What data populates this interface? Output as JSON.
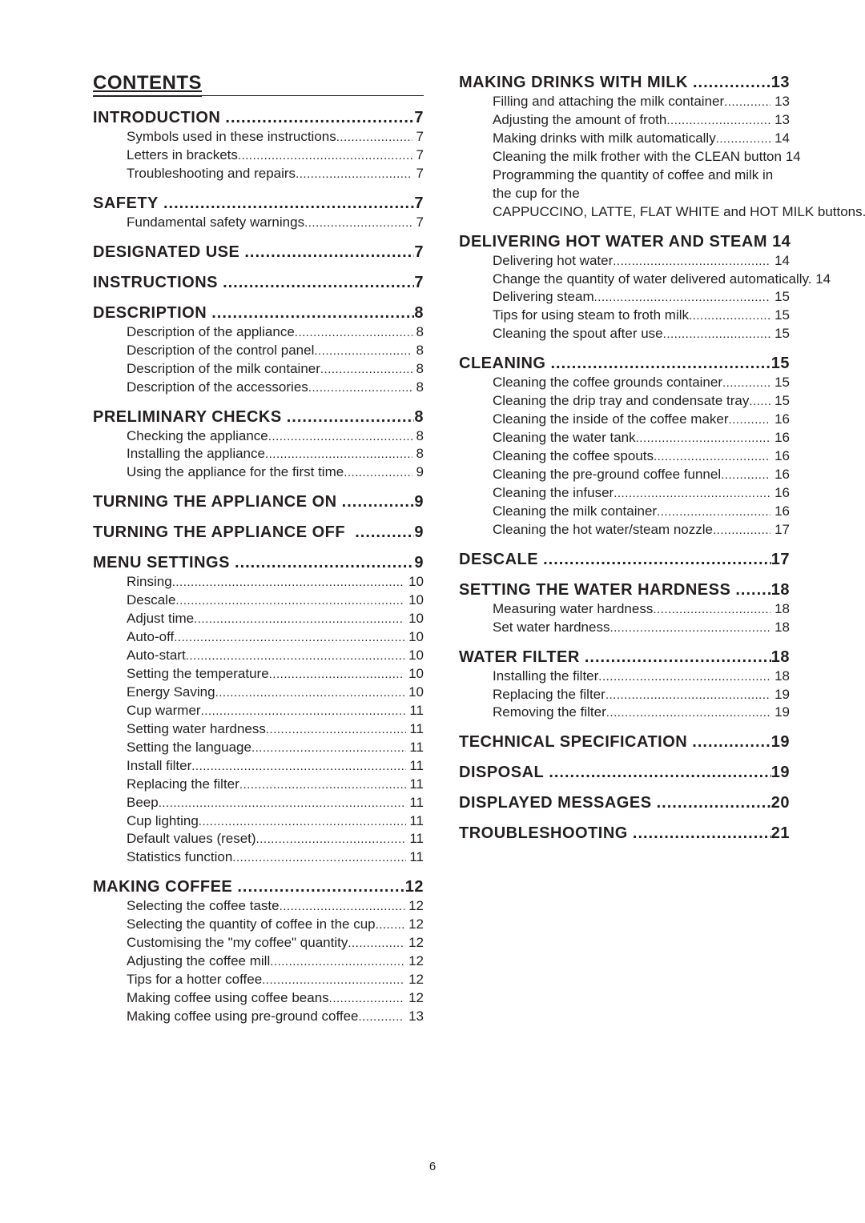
{
  "contents_title": "CONTENTS",
  "page_number": "6",
  "dots": "................................................................................................................................................",
  "left": [
    {
      "type": "head",
      "label": "INTRODUCTION",
      "page": "7",
      "subs": [
        {
          "label": "Symbols used in these instructions",
          "page": "7"
        },
        {
          "label": "Letters in brackets",
          "page": "7"
        },
        {
          "label": "Troubleshooting and repairs",
          "page": "7"
        }
      ]
    },
    {
      "type": "head",
      "label": "SAFETY",
      "page": "7",
      "subs": [
        {
          "label": "Fundamental safety warnings",
          "page": "7"
        }
      ]
    },
    {
      "type": "head",
      "label": "DESIGNATED USE",
      "page": "7",
      "subs": []
    },
    {
      "type": "head",
      "label": "INSTRUCTIONS",
      "page": "7",
      "subs": []
    },
    {
      "type": "head",
      "label": "DESCRIPTION",
      "page": "8",
      "subs": [
        {
          "label": "Description of the appliance",
          "page": "8"
        },
        {
          "label": "Description of the control panel",
          "page": "8"
        },
        {
          "label": "Description of the milk container",
          "page": "8"
        },
        {
          "label": "Description of the accessories",
          "page": "8"
        }
      ]
    },
    {
      "type": "head",
      "label": "PRELIMINARY CHECKS",
      "page": "8",
      "subs": [
        {
          "label": "Checking the appliance",
          "page": "8"
        },
        {
          "label": "Installing the appliance",
          "page": "8"
        },
        {
          "label": "Using the appliance for the first time",
          "page": "9"
        }
      ]
    },
    {
      "type": "head",
      "label": "TURNING THE APPLIANCE ON",
      "page": "9",
      "subs": []
    },
    {
      "type": "head",
      "label": "TURNING THE APPLIANCE OFF  ",
      "page": "9",
      "subs": []
    },
    {
      "type": "head",
      "label": "MENU SETTINGS",
      "page": "9",
      "subs": [
        {
          "label": "Rinsing",
          "page": "10"
        },
        {
          "label": "Descale",
          "page": "10"
        },
        {
          "label": "Adjust time",
          "page": "10"
        },
        {
          "label": "Auto-off",
          "page": "10"
        },
        {
          "label": "Auto-start",
          "page": "10"
        },
        {
          "label": "Setting the temperature",
          "page": "10"
        },
        {
          "label": "Energy Saving",
          "page": "10"
        },
        {
          "label": "Cup warmer",
          "page": "11"
        },
        {
          "label": "Setting water hardness",
          "page": "11"
        },
        {
          "label": "Setting the language ",
          "page": "11"
        },
        {
          "label": "Install filter",
          "page": "11"
        },
        {
          "label": "Replacing the filter",
          "page": "11"
        },
        {
          "label": "Beep",
          "page": "11"
        },
        {
          "label": "Cup lighting",
          "page": "11"
        },
        {
          "label": "Default values (reset)",
          "page": "11"
        },
        {
          "label": "Statistics function",
          "page": "11"
        }
      ]
    },
    {
      "type": "head",
      "label": "MAKING COFFEE",
      "page": "12",
      "subs": [
        {
          "label": "Selecting the coffee taste",
          "page": "12"
        },
        {
          "label": "Selecting the quantity of coffee in the cup",
          "page": "12"
        },
        {
          "label": "Customising the \"my coffee\" quantity",
          "page": "12"
        },
        {
          "label": "Adjusting the coffee mill",
          "page": "12"
        },
        {
          "label": "Tips for a hotter coffee",
          "page": "12"
        },
        {
          "label": "Making coffee using coffee beans",
          "page": "12"
        },
        {
          "label": "Making coffee using pre-ground coffee",
          "page": "13"
        }
      ]
    }
  ],
  "right": [
    {
      "type": "head",
      "label": "MAKING DRINKS WITH MILK",
      "page": "13",
      "subs": [
        {
          "label": "Filling and attaching the milk container",
          "page": "13"
        },
        {
          "label": "Adjusting the amount of froth",
          "page": "13"
        },
        {
          "label": "Making drinks with milk automatically",
          "page": "14"
        },
        {
          "label": "Cleaning the milk frother with the CLEAN button ",
          "page": "14"
        },
        {
          "label": "Programming the quantity of coffee and milk in the cup for the",
          "wrap": true,
          "cont": "CAPPUCCINO,  LATTE, FLAT WHITE and  HOT MILK buttons.",
          "page": "14"
        }
      ]
    },
    {
      "type": "head",
      "label": "DELIVERING HOT WATER AND STEAM",
      "page": "14",
      "subs": [
        {
          "label": "Delivering hot water ",
          "page": "14"
        },
        {
          "label": "Change the quantity of water delivered automatically. ",
          "page": "14"
        },
        {
          "label": "Delivering steam",
          "page": "15"
        },
        {
          "label": "Tips for using steam to froth milk",
          "page": "15"
        },
        {
          "label": "Cleaning the spout after use",
          "page": "15"
        }
      ]
    },
    {
      "type": "head",
      "label": "CLEANING",
      "page": "15",
      "subs": [
        {
          "label": "Cleaning the coffee grounds container",
          "page": "15"
        },
        {
          "label": "Cleaning the drip tray and condensate tray",
          "page": "15"
        },
        {
          "label": "Cleaning the inside of the coffee maker",
          "page": "16"
        },
        {
          "label": "Cleaning the water tank",
          "page": "16"
        },
        {
          "label": "Cleaning the coffee spouts",
          "page": "16"
        },
        {
          "label": "Cleaning the pre-ground coffee funnel",
          "page": "16"
        },
        {
          "label": "Cleaning the infuser",
          "page": "16"
        },
        {
          "label": "Cleaning the milk container",
          "page": "16"
        },
        {
          "label": "Cleaning the hot water/steam nozzle",
          "page": "17"
        }
      ]
    },
    {
      "type": "head",
      "label": "DESCALE",
      "page": "17",
      "subs": []
    },
    {
      "type": "head",
      "label": "SETTING THE WATER HARDNESS",
      "page": "18",
      "subs": [
        {
          "label": "Measuring water hardness",
          "page": "18"
        },
        {
          "label": "Set water hardness",
          "page": "18"
        }
      ]
    },
    {
      "type": "head",
      "label": "WATER FILTER",
      "page": "18",
      "subs": [
        {
          "label": "Installing the filter",
          "page": "18"
        },
        {
          "label": "Replacing the filter",
          "page": "19"
        },
        {
          "label": "Removing the filter",
          "page": "19"
        }
      ]
    },
    {
      "type": "head",
      "label": "TECHNICAL SPECIFICATION",
      "page": "19",
      "subs": []
    },
    {
      "type": "head",
      "label": "DISPOSAL",
      "page": "19",
      "subs": []
    },
    {
      "type": "head",
      "label": "DISPLAYED MESSAGES",
      "page": "20",
      "subs": []
    },
    {
      "type": "head",
      "label": "TROUBLESHOOTING",
      "page": "21",
      "subs": []
    }
  ]
}
